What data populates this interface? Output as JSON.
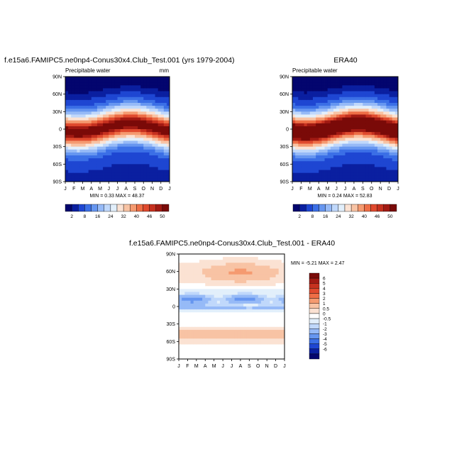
{
  "chart_data": [
    {
      "type": "heatmap",
      "title": "f.e15a6.FAMIPC5.ne0np4-Conus30x4.Club_Test.001 (yrs 1979-2004)",
      "subtitle": "Precipitable water",
      "units": "mm",
      "stats": "MIN =   0.33 MAX =   48.37",
      "x_ticks": [
        "J",
        "F",
        "M",
        "A",
        "M",
        "J",
        "J",
        "A",
        "S",
        "O",
        "N",
        "D",
        "J"
      ],
      "y_ticks": [
        "90N",
        "60N",
        "30N",
        "0",
        "30S",
        "60S",
        "90S"
      ],
      "ylim": [
        -90,
        90
      ],
      "model": {
        "equator_peak": 45,
        "peak_month": 7.5,
        "seasonal_shift": 8,
        "width": 25,
        "hemispheric_asym": 3
      },
      "colorbar": {
        "levels": [
          "2",
          "8",
          "16",
          "24",
          "32",
          "40",
          "46",
          "50"
        ],
        "colors": [
          "#03056E",
          "#0A1FA0",
          "#1E46D2",
          "#3B6FE6",
          "#6696F0",
          "#96BAF7",
          "#C0D8FB",
          "#E2EFFB",
          "#FBE2D3",
          "#F8C3A4",
          "#F59A70",
          "#EE6E46",
          "#E04A2E",
          "#C6311F",
          "#A21A13",
          "#7A0A08"
        ]
      }
    },
    {
      "type": "heatmap",
      "title": "ERA40",
      "subtitle": "Precipitable water",
      "stats": "MIN =   0.24 MAX =   52.83",
      "x_ticks": [
        "J",
        "F",
        "M",
        "A",
        "M",
        "J",
        "J",
        "A",
        "S",
        "O",
        "N",
        "D",
        "J"
      ],
      "y_ticks": [
        "90N",
        "60N",
        "30N",
        "0",
        "30S",
        "60S",
        "90S"
      ],
      "ylim": [
        -90,
        90
      ],
      "model": {
        "equator_peak": 50,
        "peak_month": 7.5,
        "seasonal_shift": 8,
        "width": 26,
        "hemispheric_asym": 3
      },
      "colorbar": {
        "levels": [
          "2",
          "8",
          "16",
          "24",
          "32",
          "40",
          "46",
          "50"
        ],
        "colors": [
          "#03056E",
          "#0A1FA0",
          "#1E46D2",
          "#3B6FE6",
          "#6696F0",
          "#96BAF7",
          "#C0D8FB",
          "#E2EFFB",
          "#FBE2D3",
          "#F8C3A4",
          "#F59A70",
          "#EE6E46",
          "#E04A2E",
          "#C6311F",
          "#A21A13",
          "#7A0A08"
        ]
      }
    },
    {
      "type": "heatmap",
      "title": "f.e15a6.FAMIPC5.ne0np4-Conus30x4.Club_Test.001 - ERA40",
      "stats": "MIN =  -5.21 MAX =   2.47",
      "x_ticks": [
        "J",
        "F",
        "M",
        "A",
        "M",
        "J",
        "J",
        "A",
        "S",
        "O",
        "N",
        "D",
        "J"
      ],
      "y_ticks": [
        "90N",
        "60N",
        "30N",
        "0",
        "30S",
        "60S",
        "90S"
      ],
      "ylim": [
        -90,
        90
      ],
      "colorbar": {
        "levels": [
          "6",
          "5",
          "4",
          "3",
          "2",
          "1",
          "0.5",
          "0",
          "-0.5",
          "-1",
          "-2",
          "-3",
          "-4",
          "-5",
          "-6"
        ],
        "colors": [
          "#7A0A08",
          "#A21A13",
          "#C6311F",
          "#E04A2E",
          "#EE6E46",
          "#F59A70",
          "#F8C3A4",
          "#FBE2D3",
          "#FFFFFF",
          "#E2EFFB",
          "#C0D8FB",
          "#96BAF7",
          "#6696F0",
          "#3B6FE6",
          "#1E46D2",
          "#0A1FA0",
          "#03056E"
        ]
      }
    }
  ]
}
